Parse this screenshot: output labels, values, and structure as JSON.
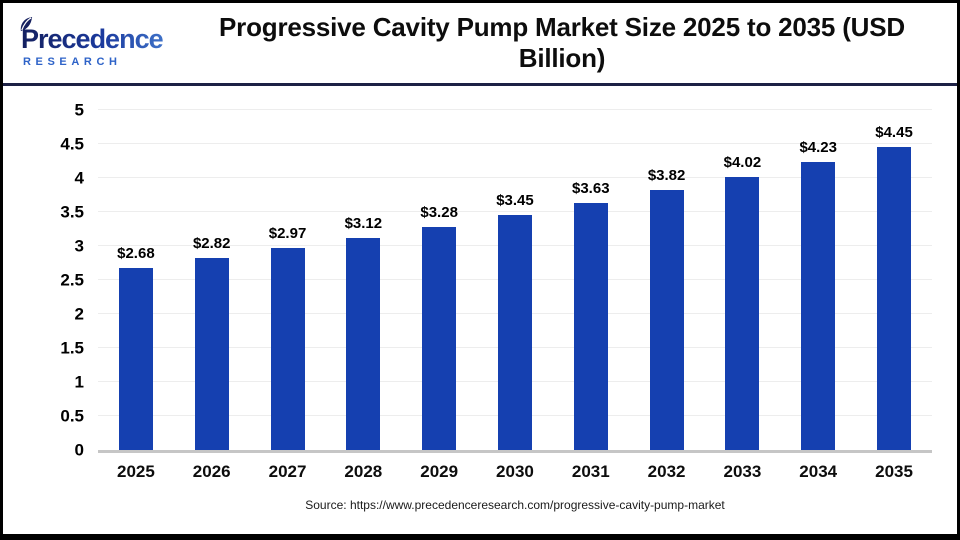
{
  "logo": {
    "name": "Precedence",
    "subtitle": "RESEARCH"
  },
  "header": {
    "title": "Progressive Cavity Pump Market Size 2025 to 2035 (USD Billion)"
  },
  "footer": {
    "source": "Source: https://www.precedenceresearch.com/progressive-cavity-pump-market"
  },
  "colors": {
    "bar": "#1540b0",
    "divider": "#1d2145",
    "gridline": "#ededed",
    "baseline": "#c6c6c6",
    "logo_dark_navy": "#141f5e",
    "logo_light_blue": "#4c86d8",
    "research_blue": "#2e63c8"
  },
  "chart_data": {
    "type": "bar",
    "title": "Progressive Cavity Pump Market Size 2025 to 2035 (USD Billion)",
    "categories": [
      "2025",
      "2026",
      "2027",
      "2028",
      "2029",
      "2030",
      "2031",
      "2032",
      "2033",
      "2034",
      "2035"
    ],
    "values": [
      2.68,
      2.82,
      2.97,
      3.12,
      3.28,
      3.45,
      3.63,
      3.82,
      4.02,
      4.23,
      4.45
    ],
    "value_labels": [
      "$2.68",
      "$2.82",
      "$2.97",
      "$3.12",
      "$3.28",
      "$3.45",
      "$3.63",
      "$3.82",
      "$4.02",
      "$4.23",
      "$4.45"
    ],
    "xlabel": "",
    "ylabel": "",
    "ylim": [
      0,
      5
    ],
    "yticks": [
      0,
      0.5,
      1,
      1.5,
      2,
      2.5,
      3,
      3.5,
      4,
      4.5,
      5
    ],
    "grid": true,
    "legend": "none",
    "bar_color": "#1540b0"
  }
}
